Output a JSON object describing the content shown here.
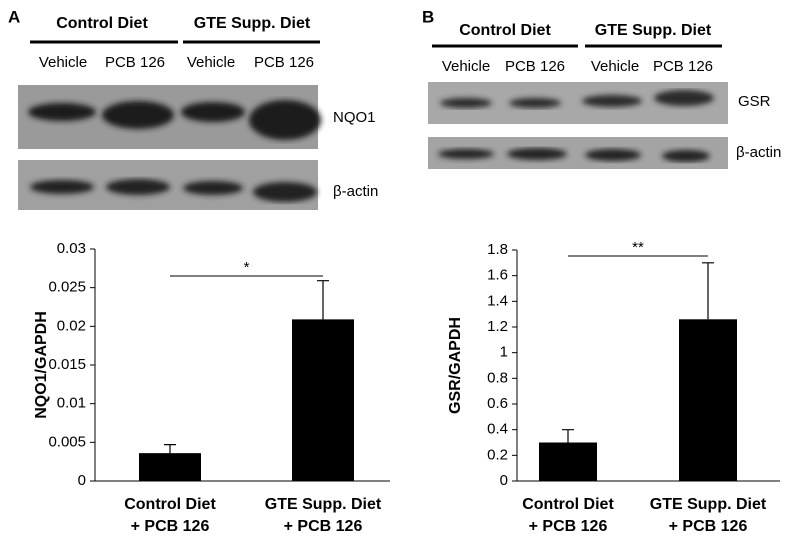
{
  "blots": [
    {
      "letter": "A",
      "groups": [
        "Control Diet",
        "GTE Supp. Diet"
      ],
      "lanes": [
        "Vehicle",
        "PCB 126",
        "Vehicle",
        "PCB 126"
      ],
      "proteins": [
        "NQO1",
        "β-actin"
      ]
    },
    {
      "letter": "B",
      "groups": [
        "Control Diet",
        "GTE Supp. Diet"
      ],
      "lanes": [
        "Vehicle",
        "PCB 126",
        "Vehicle",
        "PCB 126"
      ],
      "proteins": [
        "GSR",
        "β-actin"
      ]
    }
  ],
  "chart_data": [
    {
      "type": "bar",
      "ylabel": "NQO1/GAPDH",
      "categories": [
        "Control Diet\n+ PCB 126",
        "GTE Supp. Diet\n+ PCB 126"
      ],
      "values": [
        0.0036,
        0.0209
      ],
      "errors": [
        0.0011,
        0.005
      ],
      "color": "#000000",
      "ylim": [
        0,
        0.03
      ],
      "yticks": [
        0,
        0.005,
        0.01,
        0.015,
        0.02,
        0.025,
        0.03
      ],
      "annotation": "*"
    },
    {
      "type": "bar",
      "ylabel": "GSR/GAPDH",
      "categories": [
        "Control Diet\n+ PCB 126",
        "GTE Supp. Diet\n+ PCB 126"
      ],
      "values": [
        0.3,
        1.26
      ],
      "errors": [
        0.1,
        0.44
      ],
      "color": "#000000",
      "ylim": [
        0,
        1.8
      ],
      "yticks": [
        0,
        0.2,
        0.4,
        0.6,
        0.8,
        1,
        1.2,
        1.4,
        1.6,
        1.8
      ],
      "annotation": "**"
    }
  ]
}
